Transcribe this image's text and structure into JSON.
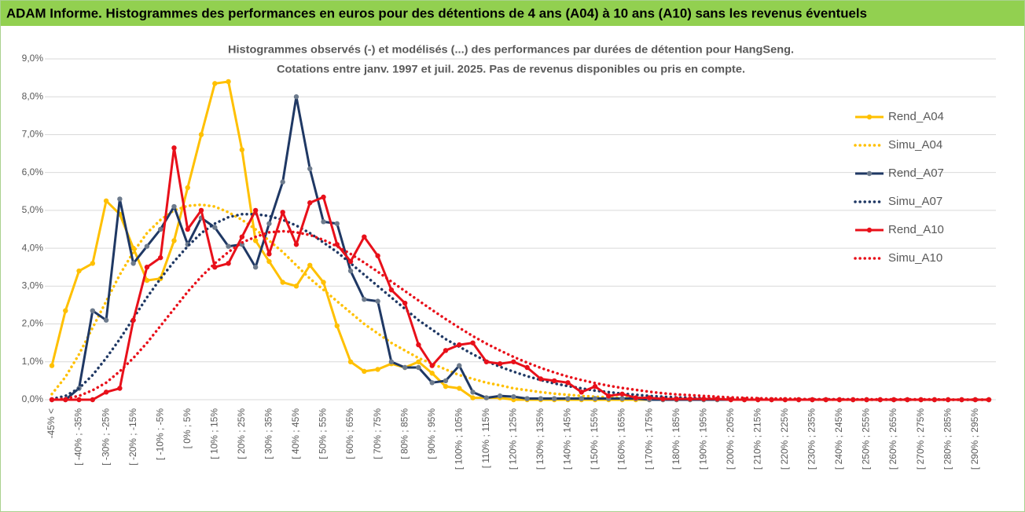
{
  "header": {
    "title": "ADAM Informe. Histogrammes des performances en euros pour des détentions de 4 ans (A04) à 10 ans (A10) sans les revenus éventuels"
  },
  "chart_data": {
    "type": "line",
    "title": "Histogrammes observés (-) et modélisés (...) des performances par durées de détention pour HangSeng.",
    "subtitle": "Cotations entre janv. 1997 et juil. 2025. Pas de revenus disponibles ou pris en compte.",
    "categories": [
      "-45% <",
      null,
      "[ -40% ; -35%",
      null,
      "[ -30% ; -25%",
      null,
      "[ -20% ; -15%",
      null,
      "[ -10% ; -5%",
      null,
      "[ 0% ; 5%",
      null,
      "[ 10% ; 15%",
      null,
      "[ 20% ; 25%",
      null,
      "[ 30% ; 35%",
      null,
      "[ 40% ; 45%",
      null,
      "[ 50% ; 55%",
      null,
      "[ 60% ; 65%",
      null,
      "[ 70% ; 75%",
      null,
      "[ 80% ; 85%",
      null,
      "[ 90% ; 95%",
      null,
      "[ 100% ; 105%",
      null,
      "[ 110% ; 115%",
      null,
      "[ 120% ; 125%",
      null,
      "[ 130% ; 135%",
      null,
      "[ 140% ; 145%",
      null,
      "[ 150% ; 155%",
      null,
      "[ 160% ; 165%",
      null,
      "[ 170% ; 175%",
      null,
      "[ 180% ; 185%",
      null,
      "[ 190% ; 195%",
      null,
      "[ 200% ; 205%",
      null,
      "[ 210% ; 215%",
      null,
      "[ 220% ; 225%",
      null,
      "[ 230% ; 235%",
      null,
      "[ 240% ; 245%",
      null,
      "[ 250% ; 255%",
      null,
      "[ 260% ; 265%",
      null,
      "[ 270% ; 275%",
      null,
      "[ 280% ; 285%",
      null,
      "[ 290% ; 295%",
      null
    ],
    "series": [
      {
        "name": "Rend_A04",
        "color": "#ffc000",
        "style": "solid",
        "markers": true,
        "values": [
          0.9,
          2.35,
          3.4,
          3.6,
          5.25,
          4.9,
          4.0,
          3.15,
          3.2,
          4.2,
          5.6,
          7.0,
          8.35,
          8.4,
          6.6,
          4.2,
          3.65,
          3.1,
          3.0,
          3.55,
          3.1,
          1.95,
          1.0,
          0.75,
          0.8,
          0.95,
          0.85,
          1.0,
          0.7,
          0.35,
          0.3,
          0.05,
          0.05,
          0.05,
          0,
          0,
          0,
          0,
          0,
          0,
          0,
          0,
          0,
          0,
          0,
          0,
          0,
          0,
          0,
          0,
          0,
          0,
          0,
          0,
          0,
          0,
          0,
          0,
          0,
          0,
          0,
          0,
          0,
          0,
          0,
          0,
          0,
          0,
          0,
          0
        ]
      },
      {
        "name": "Simu_A04",
        "color": "#ffc000",
        "style": "dotted",
        "markers": false,
        "values": [
          0.15,
          0.6,
          1.2,
          1.9,
          2.6,
          3.3,
          3.9,
          4.4,
          4.75,
          5.0,
          5.12,
          5.15,
          5.1,
          4.95,
          4.75,
          4.5,
          4.2,
          3.9,
          3.55,
          3.2,
          2.9,
          2.6,
          2.3,
          2.0,
          1.75,
          1.5,
          1.3,
          1.1,
          0.95,
          0.8,
          0.65,
          0.55,
          0.45,
          0.38,
          0.3,
          0.25,
          0.2,
          0.16,
          0.13,
          0.1,
          0.08,
          0.06,
          0.05,
          0.04,
          0.03,
          0.02,
          0.01,
          0.01,
          0.01,
          0.01,
          0.01,
          0.01,
          0.01,
          0.01,
          0.01,
          0.01,
          0,
          0,
          0,
          0,
          0,
          0,
          0,
          0,
          0,
          0,
          0,
          0,
          0,
          0
        ]
      },
      {
        "name": "Rend_A07",
        "color": "#1f3864",
        "marker_color": "#6d7b8d",
        "style": "solid",
        "markers": true,
        "values": [
          0,
          0,
          0.3,
          2.35,
          2.1,
          5.3,
          3.6,
          4.05,
          4.5,
          5.1,
          4.1,
          4.8,
          4.55,
          4.05,
          4.1,
          3.5,
          4.65,
          5.75,
          8.0,
          6.1,
          4.7,
          4.65,
          3.4,
          2.65,
          2.6,
          1.0,
          0.85,
          0.85,
          0.45,
          0.5,
          0.9,
          0.2,
          0.05,
          0.1,
          0.08,
          0.03,
          0.03,
          0.03,
          0.03,
          0.03,
          0.03,
          0.03,
          0.03,
          0.03,
          0,
          0,
          0,
          0,
          0,
          0,
          0,
          0,
          0,
          0,
          0,
          0,
          0,
          0,
          0,
          0,
          0,
          0,
          0,
          0,
          0,
          0,
          0,
          0,
          0,
          0
        ]
      },
      {
        "name": "Simu_A07",
        "color": "#1f3864",
        "style": "dotted",
        "markers": false,
        "values": [
          0.02,
          0.1,
          0.3,
          0.65,
          1.1,
          1.6,
          2.15,
          2.7,
          3.2,
          3.65,
          4.05,
          4.4,
          4.65,
          4.82,
          4.9,
          4.9,
          4.85,
          4.75,
          4.6,
          4.4,
          4.15,
          3.9,
          3.6,
          3.3,
          3.0,
          2.7,
          2.4,
          2.1,
          1.85,
          1.6,
          1.4,
          1.2,
          1.02,
          0.87,
          0.74,
          0.62,
          0.52,
          0.43,
          0.36,
          0.3,
          0.24,
          0.2,
          0.16,
          0.13,
          0.1,
          0.08,
          0.06,
          0.05,
          0.04,
          0.03,
          0.02,
          0.01,
          0.01,
          0.01,
          0.01,
          0.01,
          0.01,
          0.01,
          0.01,
          0.01,
          0,
          0,
          0,
          0,
          0,
          0,
          0,
          0,
          0,
          0
        ]
      },
      {
        "name": "Rend_A10",
        "color": "#e8101a",
        "style": "solid",
        "markers": true,
        "values": [
          0,
          0,
          0,
          0,
          0.2,
          0.3,
          2.1,
          3.5,
          3.75,
          6.65,
          4.5,
          5.0,
          3.5,
          3.6,
          4.3,
          5.0,
          3.85,
          4.95,
          4.1,
          5.2,
          5.35,
          4.1,
          3.65,
          4.3,
          3.8,
          2.9,
          2.55,
          1.45,
          0.9,
          1.3,
          1.45,
          1.5,
          1.0,
          0.95,
          1.0,
          0.85,
          0.55,
          0.5,
          0.45,
          0.2,
          0.35,
          0.1,
          0.15,
          0.05,
          0.05,
          0.02,
          0.02,
          0.02,
          0.02,
          0.02,
          0,
          0,
          0,
          0,
          0,
          0,
          0,
          0,
          0,
          0,
          0,
          0,
          0,
          0,
          0,
          0,
          0,
          0,
          0,
          0
        ]
      },
      {
        "name": "Simu_A10",
        "color": "#e8101a",
        "style": "dotted",
        "markers": false,
        "values": [
          0,
          0.03,
          0.1,
          0.25,
          0.45,
          0.75,
          1.1,
          1.5,
          1.95,
          2.4,
          2.85,
          3.25,
          3.6,
          3.9,
          4.15,
          4.3,
          4.42,
          4.45,
          4.42,
          4.35,
          4.22,
          4.05,
          3.85,
          3.62,
          3.38,
          3.12,
          2.87,
          2.62,
          2.37,
          2.13,
          1.9,
          1.68,
          1.48,
          1.3,
          1.13,
          0.98,
          0.84,
          0.72,
          0.61,
          0.52,
          0.44,
          0.37,
          0.31,
          0.26,
          0.21,
          0.17,
          0.14,
          0.12,
          0.1,
          0.08,
          0.06,
          0.05,
          0.04,
          0.03,
          0.03,
          0.02,
          0.01,
          0.01,
          0.01,
          0.01,
          0.01,
          0.01,
          0.01,
          0.01,
          0.01,
          0.01,
          0,
          0,
          0,
          0
        ]
      }
    ],
    "ylim": [
      0,
      9
    ],
    "yticks": [
      {
        "value": 0,
        "label": "0,0%"
      },
      {
        "value": 1,
        "label": "1,0%"
      },
      {
        "value": 2,
        "label": "2,0%"
      },
      {
        "value": 3,
        "label": "3,0%"
      },
      {
        "value": 4,
        "label": "4,0%"
      },
      {
        "value": 5,
        "label": "5,0%"
      },
      {
        "value": 6,
        "label": "6,0%"
      },
      {
        "value": 7,
        "label": "7,0%"
      },
      {
        "value": 8,
        "label": "8,0%"
      },
      {
        "value": 9,
        "label": "9,0%"
      }
    ],
    "grid": true,
    "legend": "right"
  }
}
